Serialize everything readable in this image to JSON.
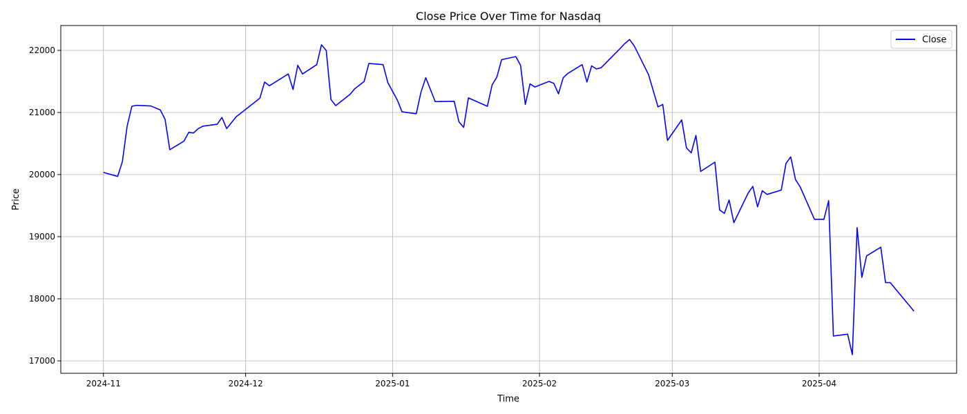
{
  "chart_data": {
    "type": "line",
    "title": "Close Price Over Time for Nasdaq",
    "xlabel": "Time",
    "ylabel": "Price",
    "grid": true,
    "legend_position": "top-right",
    "xlim": [
      "2024-10-23",
      "2025-04-30"
    ],
    "ylim": [
      16800,
      22400
    ],
    "x_ticks": [
      "2024-11-01",
      "2024-12-01",
      "2025-01-01",
      "2025-02-01",
      "2025-03-01",
      "2025-04-01"
    ],
    "x_tick_labels": [
      "2024-11",
      "2024-12",
      "2025-01",
      "2025-02",
      "2025-03",
      "2025-04"
    ],
    "y_ticks": [
      17000,
      18000,
      19000,
      20000,
      21000,
      22000
    ],
    "y_tick_labels": [
      "17000",
      "18000",
      "19000",
      "20000",
      "21000",
      "22000"
    ],
    "series": [
      {
        "name": "Close",
        "color": "#0000ff",
        "x": [
          "2024-11-01",
          "2024-11-04",
          "2024-11-05",
          "2024-11-06",
          "2024-11-07",
          "2024-11-08",
          "2024-11-11",
          "2024-11-13",
          "2024-11-14",
          "2024-11-15",
          "2024-11-18",
          "2024-11-19",
          "2024-11-20",
          "2024-11-21",
          "2024-11-22",
          "2024-11-25",
          "2024-11-26",
          "2024-11-27",
          "2024-11-29",
          "2024-12-03",
          "2024-12-04",
          "2024-12-05",
          "2024-12-06",
          "2024-12-10",
          "2024-12-11",
          "2024-12-12",
          "2024-12-13",
          "2024-12-16",
          "2024-12-17",
          "2024-12-18",
          "2024-12-19",
          "2024-12-20",
          "2024-12-23",
          "2024-12-24",
          "2024-12-26",
          "2024-12-27",
          "2024-12-30",
          "2024-12-31",
          "2025-01-02",
          "2025-01-03",
          "2025-01-06",
          "2025-01-07",
          "2025-01-08",
          "2025-01-10",
          "2025-01-14",
          "2025-01-15",
          "2025-01-16",
          "2025-01-17",
          "2025-01-21",
          "2025-01-22",
          "2025-01-23",
          "2025-01-24",
          "2025-01-27",
          "2025-01-28",
          "2025-01-29",
          "2025-01-30",
          "2025-01-31",
          "2025-02-03",
          "2025-02-04",
          "2025-02-05",
          "2025-02-06",
          "2025-02-07",
          "2025-02-10",
          "2025-02-11",
          "2025-02-12",
          "2025-02-13",
          "2025-02-14",
          "2025-02-18",
          "2025-02-19",
          "2025-02-20",
          "2025-02-21",
          "2025-02-24",
          "2025-02-25",
          "2025-02-26",
          "2025-02-27",
          "2025-02-28",
          "2025-03-03",
          "2025-03-04",
          "2025-03-05",
          "2025-03-06",
          "2025-03-07",
          "2025-03-10",
          "2025-03-11",
          "2025-03-12",
          "2025-03-13",
          "2025-03-14",
          "2025-03-17",
          "2025-03-18",
          "2025-03-19",
          "2025-03-20",
          "2025-03-21",
          "2025-03-24",
          "2025-03-25",
          "2025-03-26",
          "2025-03-27",
          "2025-03-28",
          "2025-03-31",
          "2025-04-02",
          "2025-04-03",
          "2025-04-04",
          "2025-04-07",
          "2025-04-08",
          "2025-04-09",
          "2025-04-10",
          "2025-04-11",
          "2025-04-14",
          "2025-04-15",
          "2025-04-16",
          "2025-04-21"
        ],
        "y": [
          20035,
          19970,
          20210,
          20780,
          21100,
          21115,
          21105,
          21040,
          20890,
          20400,
          20540,
          20680,
          20670,
          20740,
          20780,
          20810,
          20920,
          20740,
          20930,
          21170,
          21230,
          21490,
          21430,
          21620,
          21370,
          21760,
          21620,
          21770,
          22090,
          22000,
          21210,
          21110,
          21290,
          21380,
          21500,
          21790,
          21770,
          21480,
          21200,
          21010,
          20980,
          21330,
          21560,
          21175,
          21180,
          20850,
          20760,
          21235,
          21100,
          21445,
          21570,
          21850,
          21900,
          21760,
          21130,
          21460,
          21410,
          21500,
          21470,
          21300,
          21560,
          21630,
          21770,
          21490,
          21750,
          21700,
          21720,
          22030,
          22110,
          22175,
          22070,
          21610,
          21350,
          21090,
          21130,
          20550,
          20880,
          20430,
          20350,
          20630,
          20050,
          20200,
          19430,
          19375,
          19590,
          19225,
          19700,
          19810,
          19480,
          19740,
          19680,
          19750,
          20180,
          20285,
          19920,
          19800,
          19280,
          19280,
          19580,
          17400,
          17430,
          17100,
          19145,
          18345,
          18690,
          18830,
          18260,
          18260,
          17800
        ]
      }
    ]
  }
}
